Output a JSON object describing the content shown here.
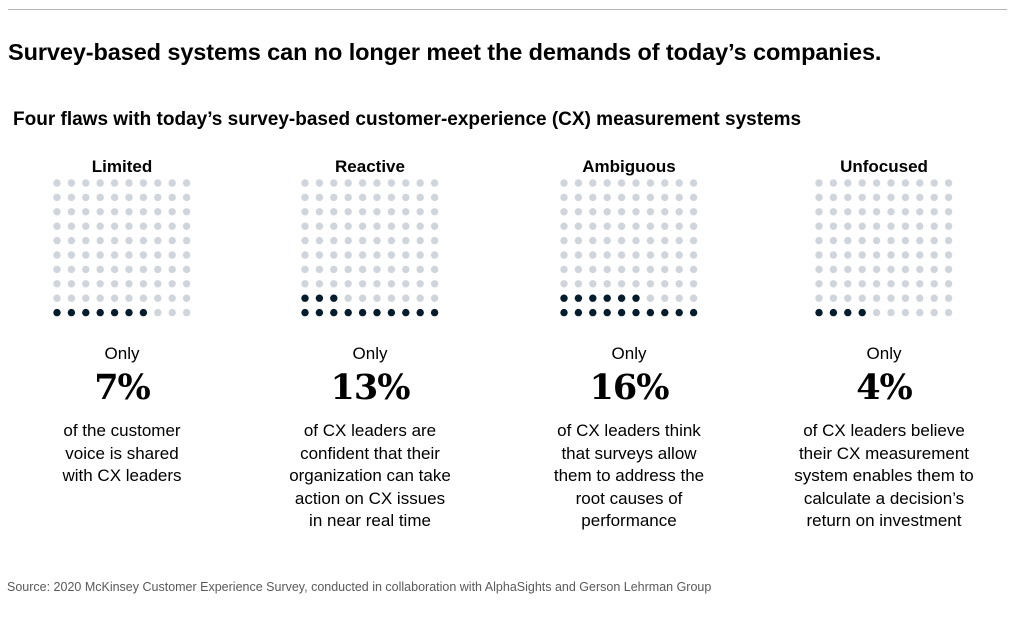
{
  "headline": "Survey-based systems can no longer meet the demands of today’s companies.",
  "subtitle": "Four flaws with today’s survey-based customer-experience (CX) measurement systems",
  "source": "Source: 2020 McKinsey Customer Experience Survey, conducted in collaboration with AlphaSights and Gerson Lehrman Group",
  "colors": {
    "filled_dot": "#051c2c",
    "empty_dot": "#d0d5dc",
    "text": "#000000",
    "source_text": "#5a5a5a",
    "rule": "#b5b5b5"
  },
  "chart_data": {
    "type": "waffle",
    "grid": {
      "rows": 10,
      "cols": 10,
      "fill_from": "bottom-left, row by row"
    },
    "panels": [
      {
        "label": "Limited",
        "value": 7,
        "prefix": "Only",
        "value_label": "7%",
        "description": [
          "of the customer",
          "voice is shared",
          "with CX leaders"
        ]
      },
      {
        "label": "Reactive",
        "value": 13,
        "prefix": "Only",
        "value_label": "13%",
        "description": [
          "of CX leaders are",
          "confident that their",
          "organization can take",
          "action on CX issues",
          "in near real time"
        ]
      },
      {
        "label": "Ambiguous",
        "value": 16,
        "prefix": "Only",
        "value_label": "16%",
        "description": [
          "of CX leaders think",
          "that surveys allow",
          "them to address the",
          "root causes of",
          "performance"
        ]
      },
      {
        "label": "Unfocused",
        "value": 4,
        "prefix": "Only",
        "value_label": "4%",
        "description": [
          "of CX leaders believe",
          "their CX measurement",
          "system enables them to",
          "calculate a decision’s",
          "return on investment"
        ]
      }
    ]
  }
}
